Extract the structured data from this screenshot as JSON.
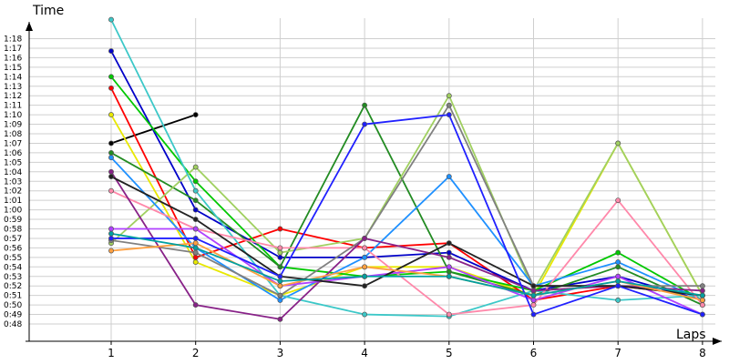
{
  "chart_data": {
    "type": "line",
    "title": "",
    "xlabel": "Laps",
    "ylabel": "Time",
    "x": [
      1,
      2,
      3,
      4,
      5,
      6,
      7,
      8
    ],
    "x_tick_labels": [
      "1",
      "2",
      "3",
      "4",
      "5",
      "6",
      "7",
      "8"
    ],
    "y_unit": "seconds",
    "y_tick_labels": [
      "0:48",
      "0:49",
      "0:50",
      "0:51",
      "0:52",
      "0:53",
      "0:54",
      "0:55",
      "0:56",
      "0:57",
      "0:58",
      "0:59",
      "1:00",
      "1:01",
      "1:02",
      "1:03",
      "1:04",
      "1:05",
      "1:06",
      "1:07",
      "1:08",
      "1:09",
      "1:10",
      "1:11",
      "1:12",
      "1:13",
      "1:14",
      "1:15",
      "1:16",
      "1:17",
      "1:18"
    ],
    "y_tick_values": [
      48,
      49,
      50,
      51,
      52,
      53,
      54,
      55,
      56,
      57,
      58,
      59,
      60,
      61,
      62,
      63,
      64,
      65,
      66,
      67,
      68,
      69,
      70,
      71,
      72,
      73,
      74,
      75,
      76,
      77,
      78
    ],
    "ylim": [
      46.5,
      85
    ],
    "grid": "horizontal",
    "legend": "none",
    "series": [
      {
        "color": "#000000",
        "values": [
          67.0,
          70.0,
          null,
          null,
          null,
          null,
          null,
          null
        ]
      },
      {
        "color": "#e8e800",
        "values": [
          70.0,
          54.5,
          51.0,
          54.0,
          54.0,
          51.0,
          67.0,
          51.0
        ]
      },
      {
        "color": "#ff0000",
        "values": [
          72.8,
          55.0,
          58.0,
          56.0,
          56.5,
          50.5,
          52.0,
          51.0
        ]
      },
      {
        "color": "#0000c8",
        "values": [
          76.7,
          60.0,
          55.0,
          55.0,
          55.5,
          51.5,
          53.0,
          50.5
        ]
      },
      {
        "color": "#00c800",
        "values": [
          74.0,
          63.0,
          54.0,
          53.0,
          53.5,
          51.5,
          55.5,
          50.5
        ]
      },
      {
        "color": "#228b22",
        "values": [
          66.0,
          61.0,
          54.0,
          71.0,
          53.5,
          51.0,
          54.0,
          50.0
        ]
      },
      {
        "color": "#a0d060",
        "values": [
          56.5,
          64.5,
          55.5,
          57.0,
          72.0,
          51.5,
          67.0,
          51.0
        ]
      },
      {
        "color": "#1e90ff",
        "values": [
          65.5,
          56.0,
          50.5,
          55.0,
          63.5,
          52.0,
          54.5,
          50.5
        ]
      },
      {
        "color": "#3cc8c8",
        "values": [
          80.0,
          62.0,
          51.0,
          49.0,
          48.8,
          51.5,
          50.5,
          51.0
        ]
      },
      {
        "color": "#ff88aa",
        "values": [
          62.0,
          58.0,
          56.0,
          56.0,
          49.0,
          50.0,
          61.0,
          50.0
        ]
      },
      {
        "color": "#808080",
        "values": [
          56.8,
          55.5,
          51.0,
          57.0,
          71.0,
          52.0,
          52.0,
          52.0
        ]
      },
      {
        "color": "#882288",
        "values": [
          64.0,
          50.0,
          48.5,
          57.0,
          55.0,
          51.5,
          52.0,
          51.5
        ]
      },
      {
        "color": "#b040ff",
        "values": [
          58.0,
          58.0,
          52.0,
          53.0,
          54.0,
          50.5,
          53.0,
          49.0
        ]
      },
      {
        "color": "#222222",
        "values": [
          63.5,
          59.0,
          53.0,
          52.0,
          56.5,
          52.0,
          52.0,
          51.0
        ]
      },
      {
        "color": "#2020ff",
        "values": [
          57.0,
          57.0,
          53.0,
          69.0,
          70.0,
          49.0,
          52.0,
          49.0
        ]
      },
      {
        "color": "#ffa040",
        "values": [
          55.7,
          56.5,
          52.0,
          54.0,
          53.0,
          51.0,
          52.5,
          50.5
        ]
      },
      {
        "color": "#00a0a0",
        "values": [
          57.5,
          56.0,
          52.5,
          53.0,
          53.0,
          51.0,
          52.5,
          51.0
        ]
      }
    ]
  }
}
